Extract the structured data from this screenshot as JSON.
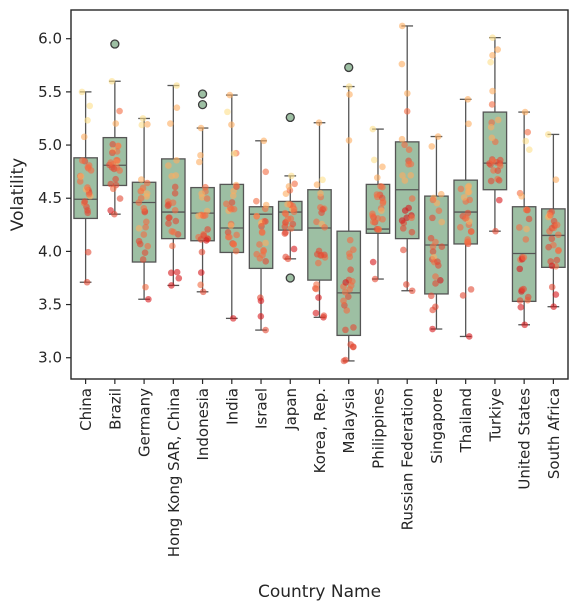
{
  "chart_data": {
    "type": "box",
    "xlabel": "Country Name",
    "ylabel": "Volatility",
    "ylim": [
      2.8,
      6.27
    ],
    "yticks": [
      3.0,
      3.5,
      4.0,
      4.5,
      5.0,
      5.5,
      6.0
    ],
    "ytick_labels": [
      "3.0",
      "3.5",
      "4.0",
      "4.5",
      "5.0",
      "5.5",
      "6.0"
    ],
    "box_color": "#9dbfa3",
    "box_edge_color": "#555555",
    "point_palette": [
      "#d7191c",
      "#e34a33",
      "#f46d43",
      "#fdae61",
      "#fee08b"
    ],
    "categories": [
      "China",
      "Brazil",
      "Germany",
      "Hong Kong SAR, China",
      "Indonesia",
      "India",
      "Israel",
      "Japan",
      "Korea, Rep.",
      "Malaysia",
      "Philippines",
      "Russian Federation",
      "Singapore",
      "Thailand",
      "Turkiye",
      "United States",
      "South Africa"
    ],
    "boxes": [
      {
        "category": "China",
        "whislo": 3.71,
        "q1": 4.31,
        "med": 4.49,
        "q3": 4.88,
        "whishi": 5.5,
        "fliers": []
      },
      {
        "category": "Brazil",
        "whislo": 4.35,
        "q1": 4.62,
        "med": 4.81,
        "q3": 5.07,
        "whishi": 5.6,
        "fliers": [
          5.95
        ]
      },
      {
        "category": "Germany",
        "whislo": 3.55,
        "q1": 3.9,
        "med": 4.46,
        "q3": 4.65,
        "whishi": 5.25,
        "fliers": []
      },
      {
        "category": "Hong Kong SAR, China",
        "whislo": 3.68,
        "q1": 4.12,
        "med": 4.37,
        "q3": 4.87,
        "whishi": 5.56,
        "fliers": []
      },
      {
        "category": "Indonesia",
        "whislo": 3.62,
        "q1": 4.1,
        "med": 4.36,
        "q3": 4.6,
        "whishi": 5.16,
        "fliers": [
          5.38,
          5.48
        ]
      },
      {
        "category": "India",
        "whislo": 3.37,
        "q1": 3.99,
        "med": 4.22,
        "q3": 4.63,
        "whishi": 5.47,
        "fliers": []
      },
      {
        "category": "Israel",
        "whislo": 3.26,
        "q1": 3.84,
        "med": 4.35,
        "q3": 4.42,
        "whishi": 5.04,
        "fliers": []
      },
      {
        "category": "Japan",
        "whislo": 3.93,
        "q1": 4.2,
        "med": 4.37,
        "q3": 4.47,
        "whishi": 4.71,
        "fliers": [
          3.75,
          5.26
        ]
      },
      {
        "category": "Korea, Rep.",
        "whislo": 3.38,
        "q1": 3.73,
        "med": 4.22,
        "q3": 4.58,
        "whishi": 5.21,
        "fliers": []
      },
      {
        "category": "Malaysia",
        "whislo": 2.97,
        "q1": 3.21,
        "med": 3.61,
        "q3": 4.19,
        "whishi": 5.55,
        "fliers": [
          5.73
        ]
      },
      {
        "category": "Philippines",
        "whislo": 3.74,
        "q1": 4.17,
        "med": 4.21,
        "q3": 4.63,
        "whishi": 5.15,
        "fliers": []
      },
      {
        "category": "Russian Federation",
        "whislo": 3.63,
        "q1": 4.12,
        "med": 4.58,
        "q3": 5.03,
        "whishi": 6.12,
        "fliers": []
      },
      {
        "category": "Singapore",
        "whislo": 3.27,
        "q1": 3.6,
        "med": 4.06,
        "q3": 4.52,
        "whishi": 5.08,
        "fliers": []
      },
      {
        "category": "Thailand",
        "whislo": 3.2,
        "q1": 4.07,
        "med": 4.37,
        "q3": 4.67,
        "whishi": 5.43,
        "fliers": []
      },
      {
        "category": "Turkiye",
        "whislo": 4.19,
        "q1": 4.58,
        "med": 4.83,
        "q3": 5.31,
        "whishi": 6.01,
        "fliers": []
      },
      {
        "category": "United States",
        "whislo": 3.31,
        "q1": 3.53,
        "med": 3.98,
        "q3": 4.42,
        "whishi": 5.31,
        "fliers": []
      },
      {
        "category": "South Africa",
        "whislo": 3.48,
        "q1": 3.85,
        "med": 4.15,
        "q3": 4.4,
        "whishi": 5.1,
        "fliers": []
      }
    ],
    "grid": false,
    "legend": "none"
  }
}
